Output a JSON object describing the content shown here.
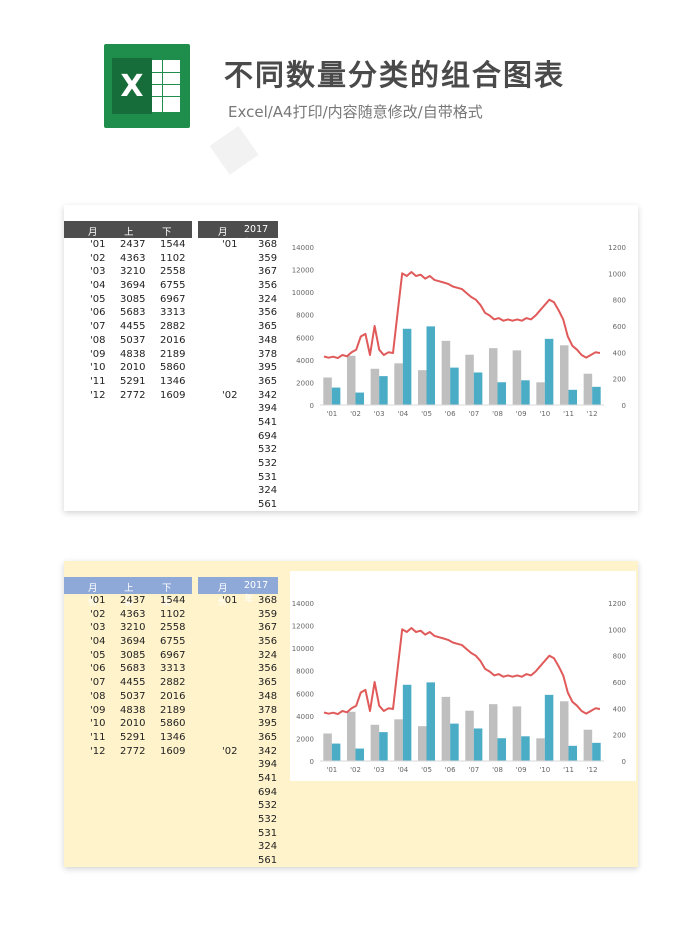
{
  "header": {
    "title": "不同数量分类的组合图表",
    "subtitle": "Excel/A4打印/内容随意修改/自带格式"
  },
  "table_left": {
    "headers": [
      "月份",
      "上装",
      "下装"
    ],
    "rows": [
      [
        "'01",
        "2437",
        "1544"
      ],
      [
        "'02",
        "4363",
        "1102"
      ],
      [
        "'03",
        "3210",
        "2558"
      ],
      [
        "'04",
        "3694",
        "6755"
      ],
      [
        "'05",
        "3085",
        "6967"
      ],
      [
        "'06",
        "5683",
        "3313"
      ],
      [
        "'07",
        "4455",
        "2882"
      ],
      [
        "'08",
        "5037",
        "2016"
      ],
      [
        "'09",
        "4838",
        "2189"
      ],
      [
        "'10",
        "2010",
        "5860"
      ],
      [
        "'11",
        "5291",
        "1346"
      ],
      [
        "'12",
        "2772",
        "1609"
      ]
    ]
  },
  "table_right": {
    "headers": [
      "月份",
      "2017年"
    ],
    "month_labels": [
      {
        "row": 0,
        "text": "'01"
      },
      {
        "row": 11,
        "text": "'02"
      }
    ],
    "values": [
      "368",
      "359",
      "367",
      "356",
      "324",
      "356",
      "365",
      "348",
      "378",
      "395",
      "365",
      "342",
      "394",
      "541",
      "694",
      "532",
      "532",
      "531",
      "324",
      "561"
    ]
  },
  "chart_data": {
    "type": "bar",
    "categories": [
      "'01",
      "'02",
      "'03",
      "'04",
      "'05",
      "'06",
      "'07",
      "'08",
      "'09",
      "'10",
      "'11",
      "'12"
    ],
    "series": [
      {
        "values": [
          2437,
          4363,
          3210,
          3694,
          3085,
          5683,
          4455,
          5037,
          4838,
          2010,
          5291,
          2772
        ]
      },
      {
        "values": [
          1544,
          1102,
          2558,
          6755,
          6967,
          3313,
          2882,
          2016,
          2189,
          5860,
          1346,
          1609
        ]
      }
    ],
    "line_series": {
      "values": [
        368,
        359,
        367,
        356,
        380,
        370,
        400,
        420,
        520,
        540,
        380,
        600,
        420,
        380,
        400,
        395,
        700,
        1000,
        980,
        1010,
        980,
        990,
        960,
        980,
        950,
        940,
        930,
        920,
        900,
        890,
        880,
        850,
        820,
        800,
        760,
        700,
        680,
        650,
        660,
        640,
        650,
        640,
        650,
        640,
        660,
        650,
        680,
        720,
        760,
        800,
        780,
        720,
        650,
        520,
        450,
        420,
        380,
        360,
        380,
        400,
        395
      ]
    },
    "y_left": {
      "ticks": [
        "0",
        "2000",
        "4000",
        "6000",
        "8000",
        "10000",
        "12000",
        "14000"
      ],
      "max": 14000
    },
    "y_right": {
      "ticks": [
        "0",
        "200",
        "400",
        "600",
        "800",
        "1000",
        "1200"
      ],
      "max": 1200
    },
    "colors": {
      "bar1": "#bfbfbf",
      "bar2": "#4bacc6",
      "line": "#e05a5a"
    }
  }
}
